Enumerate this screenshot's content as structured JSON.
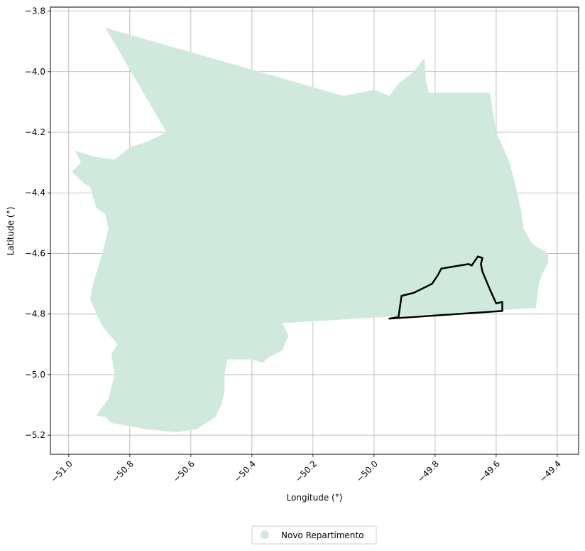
{
  "chart_data": {
    "type": "map",
    "xlabel": "Longitude (°)",
    "ylabel": "Latitude (°)",
    "xlim": [
      -51.06,
      -49.33
    ],
    "ylim": [
      -5.263,
      -3.787
    ],
    "grid": true,
    "x_ticks": [
      -51.0,
      -50.8,
      -50.6,
      -50.4,
      -50.2,
      -50.0,
      -49.8,
      -49.6,
      -49.4
    ],
    "x_tick_labels": [
      "−51.0",
      "−50.8",
      "−50.6",
      "−50.4",
      "−50.2",
      "−50.0",
      "−49.8",
      "−49.6",
      "−49.4"
    ],
    "y_ticks": [
      -3.8,
      -4.0,
      -4.2,
      -4.4,
      -4.6,
      -4.8,
      -5.0,
      -5.2
    ],
    "y_tick_labels": [
      "−3.8",
      "−4.0",
      "−4.2",
      "−4.4",
      "−4.6",
      "−4.8",
      "−5.0",
      "−5.2"
    ],
    "legend": {
      "placement": "bottom-center",
      "entries": [
        {
          "label": "Novo Repartimento",
          "color": "#cfeadd"
        }
      ]
    },
    "region_fill_color": "#cfeadd",
    "outline_color": "#000000",
    "region_polygon": [
      [
        -50.88,
        -3.855
      ],
      [
        -50.1,
        -4.08
      ],
      [
        -50.0,
        -4.06
      ],
      [
        -49.95,
        -4.08
      ],
      [
        -49.92,
        -4.04
      ],
      [
        -49.87,
        -4.0
      ],
      [
        -49.835,
        -3.955
      ],
      [
        -49.83,
        -4.03
      ],
      [
        -49.82,
        -4.07
      ],
      [
        -49.62,
        -4.07
      ],
      [
        -49.6,
        -4.2
      ],
      [
        -49.56,
        -4.29
      ],
      [
        -49.54,
        -4.36
      ],
      [
        -49.52,
        -4.45
      ],
      [
        -49.51,
        -4.52
      ],
      [
        -49.48,
        -4.57
      ],
      [
        -49.43,
        -4.6
      ],
      [
        -49.43,
        -4.63
      ],
      [
        -49.45,
        -4.67
      ],
      [
        -49.46,
        -4.7
      ],
      [
        -49.47,
        -4.78
      ],
      [
        -50.3,
        -4.83
      ],
      [
        -50.28,
        -4.87
      ],
      [
        -50.3,
        -4.92
      ],
      [
        -50.34,
        -4.94
      ],
      [
        -50.365,
        -4.96
      ],
      [
        -50.4,
        -4.95
      ],
      [
        -50.43,
        -4.95
      ],
      [
        -50.48,
        -4.95
      ],
      [
        -50.49,
        -5.0
      ],
      [
        -50.49,
        -5.06
      ],
      [
        -50.5,
        -5.1
      ],
      [
        -50.52,
        -5.14
      ],
      [
        -50.58,
        -5.18
      ],
      [
        -50.65,
        -5.19
      ],
      [
        -50.7,
        -5.185
      ],
      [
        -50.75,
        -5.18
      ],
      [
        -50.8,
        -5.17
      ],
      [
        -50.86,
        -5.16
      ],
      [
        -50.88,
        -5.14
      ],
      [
        -50.91,
        -5.135
      ],
      [
        -50.87,
        -5.08
      ],
      [
        -50.85,
        -5.0
      ],
      [
        -50.86,
        -4.93
      ],
      [
        -50.84,
        -4.9
      ],
      [
        -50.89,
        -4.84
      ],
      [
        -50.9,
        -4.82
      ],
      [
        -50.93,
        -4.75
      ],
      [
        -50.92,
        -4.7
      ],
      [
        -50.89,
        -4.6
      ],
      [
        -50.87,
        -4.52
      ],
      [
        -50.88,
        -4.47
      ],
      [
        -50.91,
        -4.45
      ],
      [
        -50.93,
        -4.38
      ],
      [
        -50.95,
        -4.37
      ],
      [
        -50.97,
        -4.35
      ],
      [
        -50.99,
        -4.33
      ],
      [
        -50.96,
        -4.3
      ],
      [
        -50.98,
        -4.26
      ],
      [
        -50.92,
        -4.28
      ],
      [
        -50.85,
        -4.29
      ],
      [
        -50.8,
        -4.25
      ],
      [
        -50.74,
        -4.23
      ],
      [
        -50.68,
        -4.2
      ]
    ],
    "outline_polygon": [
      [
        -49.95,
        -4.815
      ],
      [
        -49.92,
        -4.81
      ],
      [
        -49.91,
        -4.74
      ],
      [
        -49.87,
        -4.73
      ],
      [
        -49.85,
        -4.72
      ],
      [
        -49.82,
        -4.705
      ],
      [
        -49.81,
        -4.7
      ],
      [
        -49.79,
        -4.67
      ],
      [
        -49.78,
        -4.65
      ],
      [
        -49.75,
        -4.645
      ],
      [
        -49.72,
        -4.64
      ],
      [
        -49.69,
        -4.635
      ],
      [
        -49.68,
        -4.64
      ],
      [
        -49.67,
        -4.625
      ],
      [
        -49.66,
        -4.61
      ],
      [
        -49.645,
        -4.615
      ],
      [
        -49.65,
        -4.635
      ],
      [
        -49.645,
        -4.66
      ],
      [
        -49.62,
        -4.72
      ],
      [
        -49.6,
        -4.765
      ],
      [
        -49.58,
        -4.76
      ],
      [
        -49.58,
        -4.79
      ]
    ]
  }
}
